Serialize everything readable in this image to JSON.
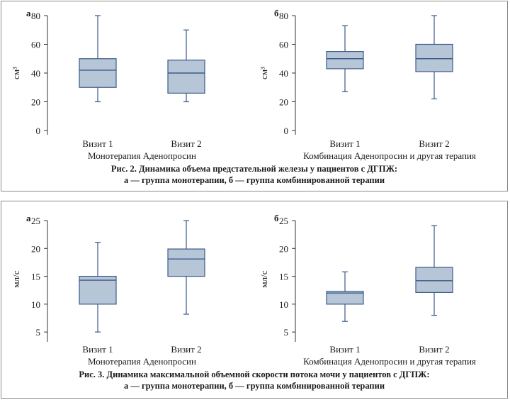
{
  "colors": {
    "box_fill": "#b7c6d7",
    "box_stroke": "#3a5a8c",
    "axis": "#333333"
  },
  "figures": [
    {
      "caption_line1": "Рис. 2. Динамика объема предстательной железы у пациентов с ДГПЖ:",
      "caption_line2": "а — группа монотерапии, б — группа комбинированной терапии",
      "chart_data": [
        {
          "type": "boxplot",
          "panel_label": "а",
          "ylabel": "см³",
          "ylim": [
            0,
            80
          ],
          "yticks": [
            "0",
            "20",
            "40",
            "60",
            "80"
          ],
          "xlabel": "Монотерапия Аденопросин",
          "categories": [
            "Визит 1",
            "Визит 2"
          ],
          "boxes": [
            {
              "min": 20,
              "q1": 30,
              "median": 42,
              "q3": 50,
              "max": 80
            },
            {
              "min": 20,
              "q1": 26,
              "median": 40,
              "q3": 49,
              "max": 70
            }
          ]
        },
        {
          "type": "boxplot",
          "panel_label": "б",
          "ylabel": "см³",
          "ylim": [
            0,
            80
          ],
          "yticks": [
            "0",
            "20",
            "40",
            "60",
            "80"
          ],
          "xlabel": "Комбинация Аденопросин и другая терапия",
          "categories": [
            "Визит 1",
            "Визит 2"
          ],
          "boxes": [
            {
              "min": 27,
              "q1": 43,
              "median": 50,
              "q3": 55,
              "max": 73
            },
            {
              "min": 22,
              "q1": 41,
              "median": 50,
              "q3": 60,
              "max": 80
            }
          ]
        }
      ]
    },
    {
      "caption_line1": "Рис. 3. Динамика максимальной объемной скорости потока мочи у пациентов с ДГПЖ:",
      "caption_line2": "а — группа монотерапии, б — группа комбинированной терапии",
      "chart_data": [
        {
          "type": "boxplot",
          "panel_label": "а",
          "ylabel": "мл/с",
          "ylim": [
            4,
            25
          ],
          "yticks": [
            "5",
            "10",
            "15",
            "20",
            "25"
          ],
          "xlabel": "Монотерапия Аденопросин",
          "categories": [
            "Визит 1",
            "Визит 2"
          ],
          "boxes": [
            {
              "min": 5,
              "q1": 10,
              "median": 14.3,
              "q3": 15,
              "max": 21.1
            },
            {
              "min": 8.2,
              "q1": 15,
              "median": 18.1,
              "q3": 19.9,
              "max": 25
            }
          ]
        },
        {
          "type": "boxplot",
          "panel_label": "б",
          "ylabel": "мл/с",
          "ylim": [
            4,
            25
          ],
          "yticks": [
            "5",
            "10",
            "15",
            "20",
            "25"
          ],
          "xlabel": "Комбинация Аденопросин и другая терапия",
          "categories": [
            "Визит 1",
            "Визит 2"
          ],
          "boxes": [
            {
              "min": 6.9,
              "q1": 10,
              "median": 12,
              "q3": 12.3,
              "max": 15.8
            },
            {
              "min": 8,
              "q1": 12.1,
              "median": 14.2,
              "q3": 16.6,
              "max": 24.1
            }
          ]
        }
      ]
    }
  ]
}
